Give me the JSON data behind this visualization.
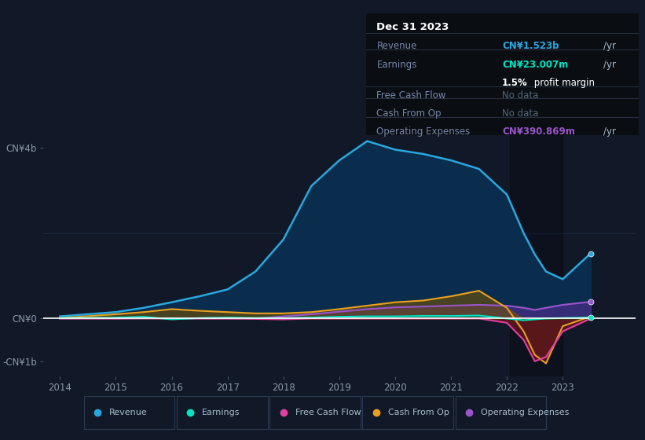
{
  "bg_color": "#111827",
  "chart_bg": "#111827",
  "grid_color": "#1e3048",
  "zero_line_color": "#ffffff",
  "years": [
    2014,
    2015,
    2015.5,
    2016,
    2016.5,
    2017,
    2017.5,
    2018,
    2018.5,
    2019,
    2019.5,
    2020,
    2020.5,
    2021,
    2021.5,
    2022,
    2022.3,
    2022.5,
    2022.7,
    2023,
    2023.5
  ],
  "revenue": [
    0.05,
    0.15,
    0.25,
    0.38,
    0.52,
    0.68,
    1.1,
    1.85,
    3.1,
    3.7,
    4.15,
    3.95,
    3.85,
    3.7,
    3.5,
    2.9,
    2.0,
    1.5,
    1.1,
    0.92,
    1.523
  ],
  "earnings": [
    0.01,
    0.02,
    0.04,
    -0.02,
    0.01,
    0.02,
    0.01,
    0.01,
    0.02,
    0.04,
    0.05,
    0.05,
    0.06,
    0.06,
    0.07,
    0.0,
    -0.04,
    -0.02,
    0.0,
    0.01,
    0.023
  ],
  "free_cash_flow": [
    0.0,
    0.0,
    0.01,
    0.0,
    0.0,
    0.0,
    -0.01,
    -0.02,
    0.0,
    0.0,
    0.0,
    0.0,
    0.0,
    0.0,
    0.0,
    -0.1,
    -0.5,
    -1.0,
    -0.9,
    -0.3,
    0.0
  ],
  "cash_from_op": [
    0.01,
    0.1,
    0.15,
    0.22,
    0.18,
    0.15,
    0.12,
    0.12,
    0.15,
    0.22,
    0.3,
    0.38,
    0.42,
    0.52,
    0.65,
    0.25,
    -0.3,
    -0.85,
    -1.05,
    -0.18,
    0.05
  ],
  "operating_expenses": [
    0.0,
    0.0,
    0.0,
    0.0,
    0.0,
    0.0,
    0.0,
    0.05,
    0.1,
    0.16,
    0.22,
    0.26,
    0.28,
    0.3,
    0.32,
    0.3,
    0.25,
    0.2,
    0.25,
    0.32,
    0.39
  ],
  "revenue_color": "#29a8e0",
  "earnings_color": "#00e5c3",
  "free_cash_flow_color": "#e040a0",
  "cash_from_op_color": "#e8a020",
  "operating_expenses_color": "#9955cc",
  "revenue_fill": "#0a2d4d",
  "ylim_top": 4.6,
  "ylim_bottom": -1.35,
  "xtick_years": [
    2014,
    2015,
    2016,
    2017,
    2018,
    2019,
    2020,
    2021,
    2022,
    2023
  ],
  "info_box": {
    "date": "Dec 31 2023",
    "revenue_label": "Revenue",
    "revenue_value": "CN¥1.523b",
    "revenue_unit": "/yr",
    "earnings_label": "Earnings",
    "earnings_value": "CN¥23.007m",
    "earnings_unit": "/yr",
    "profit_margin": "1.5%",
    "profit_margin_rest": " profit margin",
    "fcf_label": "Free Cash Flow",
    "fcf_value": "No data",
    "cashop_label": "Cash From Op",
    "cashop_value": "No data",
    "opex_label": "Operating Expenses",
    "opex_value": "CN¥390.869m",
    "opex_unit": "/yr"
  },
  "legend_items": [
    {
      "label": "Revenue",
      "color": "#29a8e0"
    },
    {
      "label": "Earnings",
      "color": "#00e5c3"
    },
    {
      "label": "Free Cash Flow",
      "color": "#e040a0"
    },
    {
      "label": "Cash From Op",
      "color": "#e8a020"
    },
    {
      "label": "Operating Expenses",
      "color": "#9955cc"
    }
  ]
}
